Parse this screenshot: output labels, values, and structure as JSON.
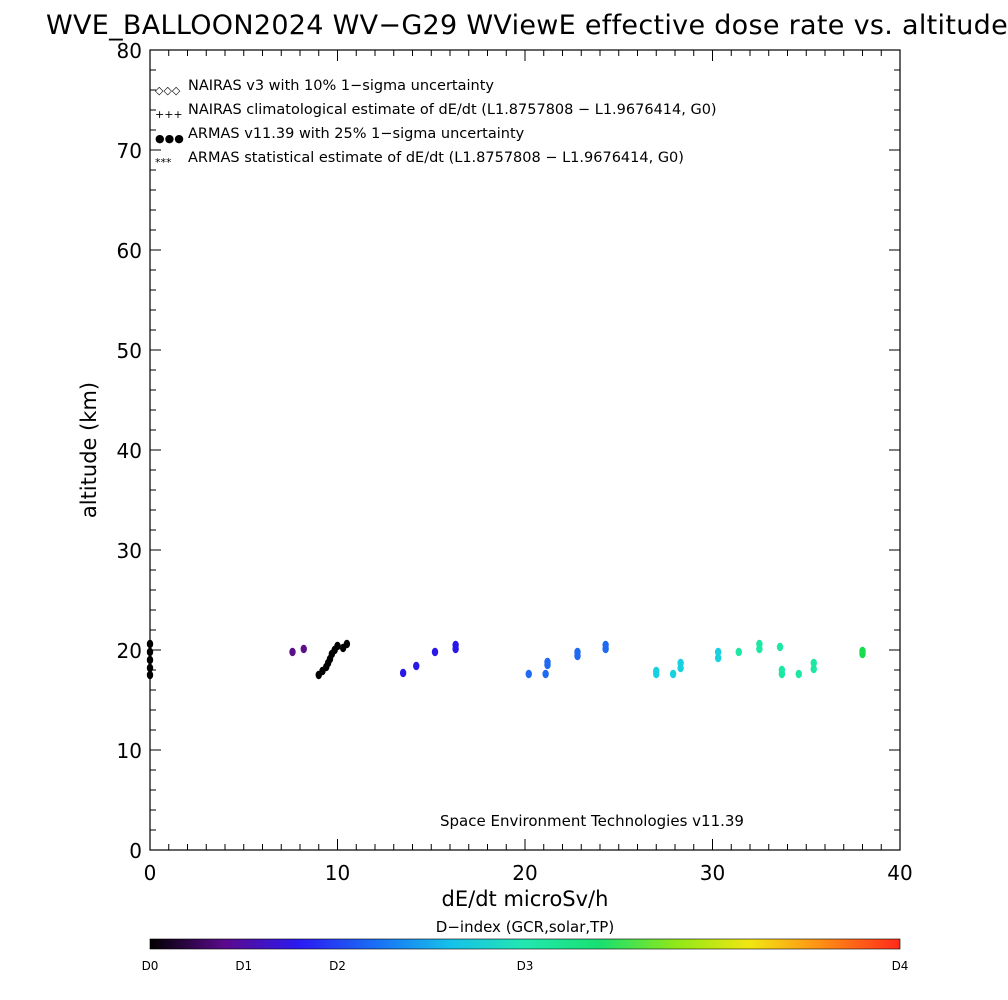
{
  "chart_data": {
    "type": "scatter",
    "title": "WVE_BALLOON2024 WV−G29 WViewE effective dose rate vs. altitude",
    "xlabel": "dE/dt microSv/h",
    "ylabel": "altitude (km)",
    "xlim": [
      0,
      40
    ],
    "ylim": [
      0,
      80
    ],
    "x_ticks": [
      0,
      10,
      20,
      30,
      40
    ],
    "y_ticks": [
      0,
      10,
      20,
      30,
      40,
      50,
      60,
      70,
      80
    ],
    "x_tick_labels": [
      "0",
      "10",
      "20",
      "30",
      "40"
    ],
    "y_tick_labels": [
      "0",
      "10",
      "20",
      "30",
      "40",
      "50",
      "60",
      "70",
      "80"
    ],
    "grid": false,
    "legend_position": "top-left",
    "legend": [
      {
        "marker": "◇◇◇",
        "label": "NAIRAS v3 with 10% 1−sigma uncertainty",
        "color": "#000000"
      },
      {
        "marker": "+++",
        "label": "NAIRAS climatological estimate of dE/dt (L1.8757808 − L1.9676414, G0)",
        "color": "#000000"
      },
      {
        "marker": "●●●",
        "label": "ARMAS v11.39 with 25% 1−sigma uncertainty",
        "color": "#1a2fe0"
      },
      {
        "marker": "***",
        "label": "ARMAS statistical estimate of dE/dt (L1.8757808 − L1.9676414, G0)",
        "color": "#000000"
      }
    ],
    "annotation": "Space Environment Technologies v11.39",
    "colorbar": {
      "title": "D−index (GCR,solar,TP)",
      "labels": [
        {
          "text": "D0",
          "pos": 0
        },
        {
          "text": "D1",
          "pos": 0.125
        },
        {
          "text": "D2",
          "pos": 0.25
        },
        {
          "text": "D3",
          "pos": 0.5
        },
        {
          "text": "D4",
          "pos": 1
        }
      ],
      "stops": [
        "#000000",
        "#5a0a8c",
        "#2b1bf2",
        "#1a6ef5",
        "#16c0ea",
        "#22e8b0",
        "#18e070",
        "#8ee81a",
        "#f2e612",
        "#ff8a16",
        "#ff2a1a"
      ]
    },
    "series": [
      {
        "color": "#000000",
        "points": [
          [
            0.0,
            17.5
          ],
          [
            0.0,
            18.2
          ],
          [
            0.0,
            19.0
          ],
          [
            0.0,
            19.8
          ],
          [
            0.0,
            20.6
          ],
          [
            9.0,
            17.5
          ],
          [
            9.2,
            17.9
          ],
          [
            9.4,
            18.3
          ],
          [
            9.5,
            18.7
          ],
          [
            9.6,
            19.1
          ],
          [
            9.7,
            19.6
          ],
          [
            9.85,
            20.0
          ],
          [
            10.0,
            20.4
          ],
          [
            10.3,
            20.2
          ],
          [
            10.5,
            20.6
          ]
        ]
      },
      {
        "color": "#5c1088",
        "points": [
          [
            7.6,
            19.8
          ],
          [
            8.2,
            20.1
          ]
        ]
      },
      {
        "color": "#2a18e8",
        "points": [
          [
            13.5,
            17.7
          ],
          [
            14.2,
            18.4
          ],
          [
            15.2,
            19.8
          ],
          [
            16.3,
            20.1
          ],
          [
            16.3,
            20.5
          ]
        ]
      },
      {
        "color": "#1f6af0",
        "points": [
          [
            20.2,
            17.6
          ],
          [
            21.1,
            17.6
          ],
          [
            21.2,
            18.5
          ],
          [
            21.2,
            18.8
          ],
          [
            22.8,
            19.4
          ],
          [
            22.8,
            19.8
          ],
          [
            24.3,
            20.1
          ],
          [
            24.3,
            20.5
          ]
        ]
      },
      {
        "color": "#18d0e0",
        "points": [
          [
            27.0,
            17.6
          ],
          [
            27.0,
            17.9
          ],
          [
            27.9,
            17.6
          ],
          [
            28.3,
            18.2
          ],
          [
            28.3,
            18.7
          ],
          [
            30.3,
            19.2
          ],
          [
            30.3,
            19.8
          ]
        ]
      },
      {
        "color": "#1de8a2",
        "points": [
          [
            31.4,
            19.8
          ],
          [
            32.5,
            20.1
          ],
          [
            32.5,
            20.6
          ],
          [
            33.6,
            20.3
          ],
          [
            33.7,
            17.6
          ],
          [
            33.7,
            18.0
          ],
          [
            34.6,
            17.6
          ],
          [
            35.4,
            18.1
          ],
          [
            35.4,
            18.7
          ]
        ]
      },
      {
        "color": "#17dc4e",
        "points": [
          [
            38.0,
            19.6
          ],
          [
            38.0,
            19.9
          ]
        ]
      }
    ]
  }
}
